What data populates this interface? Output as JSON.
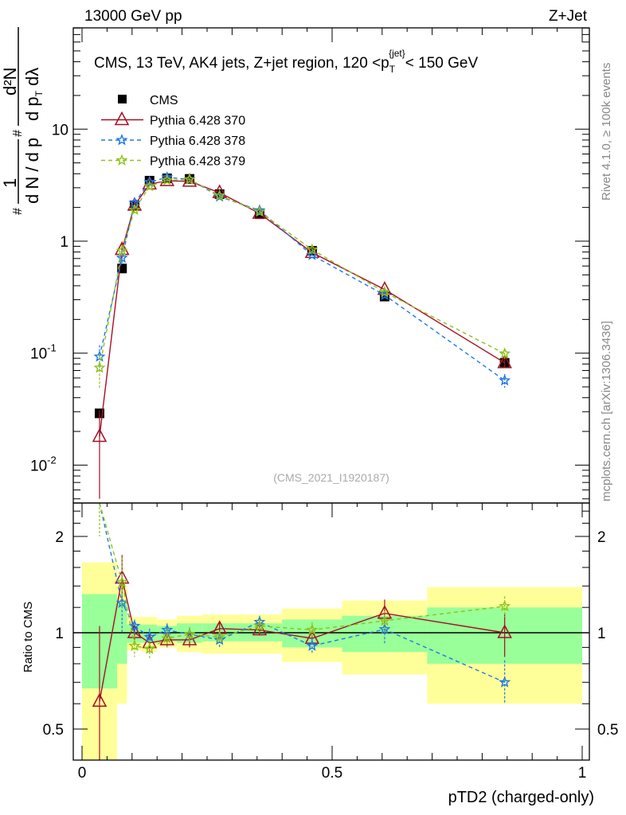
{
  "header": {
    "left": "13000 GeV pp",
    "right": "Z+Jet"
  },
  "side_labels": {
    "rivet": "Rivet 4.1.0, ≥ 100k events",
    "mcplots": "mcplots.cern.ch [arXiv:1306.3436]"
  },
  "chart_data": [
    {
      "type": "line",
      "title": "CMS, 13 TeV, AK4 jets, Z+jet region, 120 < p_T^{jet} < 150 GeV",
      "title_parts": {
        "main": "CMS, 13 TeV, AK4 jets, Z+jet region, 120 <p",
        "sub": "T",
        "sup": "{jet}",
        "tail": "< 150 GeV"
      },
      "ylabel": "1/(dN/dp_T) d²N/(dp_T dλ)",
      "ylabel_parts": {
        "num1": "1",
        "den1": "d N / d p",
        "num2": "d²N",
        "den2": "d p",
        "den2b": "dλ",
        "hash": "#",
        "T": "T"
      },
      "yscale": "log",
      "ylim": [
        0.005,
        40
      ],
      "xlim": [
        -0.02,
        1.0
      ],
      "yticks": [
        {
          "v": 0.01,
          "base": "10",
          "exp": "-2"
        },
        {
          "v": 0.1,
          "base": "10",
          "exp": "-1"
        },
        {
          "v": 1,
          "base": "1",
          "exp": ""
        },
        {
          "v": 10,
          "base": "10",
          "exp": ""
        }
      ],
      "watermark": "(CMS_2021_I1920187)",
      "legend_position": "top-left",
      "x": [
        0.035,
        0.08,
        0.105,
        0.135,
        0.17,
        0.215,
        0.275,
        0.355,
        0.46,
        0.605,
        0.845
      ],
      "bin_edges": [
        0,
        0.07,
        0.09,
        0.12,
        0.15,
        0.19,
        0.24,
        0.31,
        0.4,
        0.52,
        0.69,
        1.0
      ],
      "series": [
        {
          "name": "CMS",
          "color": "#000000",
          "style": "data",
          "values": [
            0.029,
            0.57,
            2.09,
            3.47,
            3.64,
            3.6,
            2.63,
            1.74,
            0.82,
            0.32,
            0.082
          ]
        },
        {
          "name": "Pythia 6.428 370",
          "color": "#a50f25",
          "style": "solid",
          "marker": "triangle",
          "values": [
            0.018,
            0.84,
            2.09,
            3.23,
            3.46,
            3.42,
            2.71,
            1.77,
            0.79,
            0.37,
            0.082
          ],
          "err": [
            0.013,
            0.12,
            0.1,
            0.1,
            0.1,
            0.1,
            0.08,
            0.06,
            0.03,
            0.02,
            0.008
          ]
        },
        {
          "name": "Pythia 6.428 378",
          "color": "#1f78e6",
          "style": "dashed",
          "marker": "star",
          "values": [
            0.093,
            0.71,
            2.19,
            3.37,
            3.71,
            3.56,
            2.5,
            1.88,
            0.75,
            0.33,
            0.057
          ],
          "err": [
            0.025,
            0.08,
            0.1,
            0.1,
            0.1,
            0.1,
            0.08,
            0.06,
            0.03,
            0.02,
            0.008
          ]
        },
        {
          "name": "Pythia 6.428 379",
          "color": "#8fc11b",
          "style": "dashed",
          "marker": "star",
          "values": [
            0.074,
            0.82,
            1.9,
            3.09,
            3.5,
            3.56,
            2.55,
            1.83,
            0.84,
            0.35,
            0.099
          ],
          "err": [
            0.025,
            0.08,
            0.1,
            0.1,
            0.1,
            0.1,
            0.08,
            0.06,
            0.03,
            0.02,
            0.01
          ]
        }
      ]
    },
    {
      "type": "line",
      "ylabel": "Ratio to CMS",
      "xlabel": "pTD2 (charged-only)",
      "yscale": "log",
      "ylim": [
        0.4,
        2.55
      ],
      "xlim": [
        -0.02,
        1.0
      ],
      "yticks": [
        {
          "v": 0.5,
          "label": "0.5"
        },
        {
          "v": 1,
          "label": "1"
        },
        {
          "v": 2,
          "label": "2"
        }
      ],
      "xticks": [
        {
          "v": 0,
          "label": "0"
        },
        {
          "v": 0.5,
          "label": "0.5"
        },
        {
          "v": 1,
          "label": "1"
        }
      ],
      "band_inner": {
        "color": "#99ff99",
        "lo": [
          0.67,
          0.8,
          0.93,
          0.93,
          0.94,
          0.93,
          0.94,
          0.94,
          0.9,
          0.87,
          0.8
        ],
        "hi": [
          1.32,
          1.25,
          1.06,
          1.06,
          1.05,
          1.07,
          1.07,
          1.07,
          1.1,
          1.13,
          1.2
        ]
      },
      "band_outer": {
        "color": "#ffff99",
        "lo": [
          0.3,
          0.6,
          0.88,
          0.87,
          0.9,
          0.87,
          0.86,
          0.86,
          0.81,
          0.74,
          0.6
        ],
        "hi": [
          1.66,
          1.4,
          1.12,
          1.12,
          1.1,
          1.13,
          1.14,
          1.14,
          1.19,
          1.26,
          1.39
        ]
      },
      "series": [
        {
          "name": "Pythia 6.428 370",
          "color": "#a50f25",
          "style": "solid",
          "marker": "triangle",
          "values": [
            0.61,
            1.48,
            1.0,
            0.93,
            0.95,
            0.95,
            1.03,
            1.02,
            0.96,
            1.15,
            1.0
          ],
          "lo": [
            0.3,
            1.25,
            0.95,
            0.87,
            0.9,
            0.9,
            0.98,
            0.98,
            0.92,
            1.07,
            0.84
          ],
          "hi": [
            1.05,
            1.75,
            1.05,
            0.99,
            1.0,
            1.0,
            1.08,
            1.06,
            1.0,
            1.27,
            1.15
          ]
        },
        {
          "name": "Pythia 6.428 378",
          "color": "#1f78e6",
          "style": "dashed",
          "marker": "star",
          "values": [
            3.2,
            1.24,
            1.05,
            0.97,
            1.02,
            0.99,
            0.95,
            1.08,
            0.91,
            1.025,
            0.7
          ],
          "lo": [
            2.5,
            1.0,
            0.99,
            0.91,
            0.97,
            0.94,
            0.9,
            1.03,
            0.86,
            0.92,
            0.6
          ],
          "hi": [
            3.9,
            1.4,
            1.1,
            1.03,
            1.07,
            1.04,
            1.0,
            1.13,
            0.96,
            1.12,
            0.82
          ]
        },
        {
          "name": "Pythia 6.428 379",
          "color": "#8fc11b",
          "style": "dashed",
          "marker": "star",
          "values": [
            2.55,
            1.44,
            0.91,
            0.89,
            0.96,
            0.99,
            0.97,
            1.05,
            1.02,
            1.09,
            1.21
          ],
          "lo": [
            2.0,
            1.2,
            0.84,
            0.83,
            0.9,
            0.94,
            0.93,
            1.0,
            0.96,
            1.0,
            1.12
          ],
          "hi": [
            3.1,
            1.72,
            0.98,
            0.95,
            1.02,
            1.04,
            1.01,
            1.1,
            1.08,
            1.17,
            1.3
          ]
        }
      ]
    }
  ]
}
